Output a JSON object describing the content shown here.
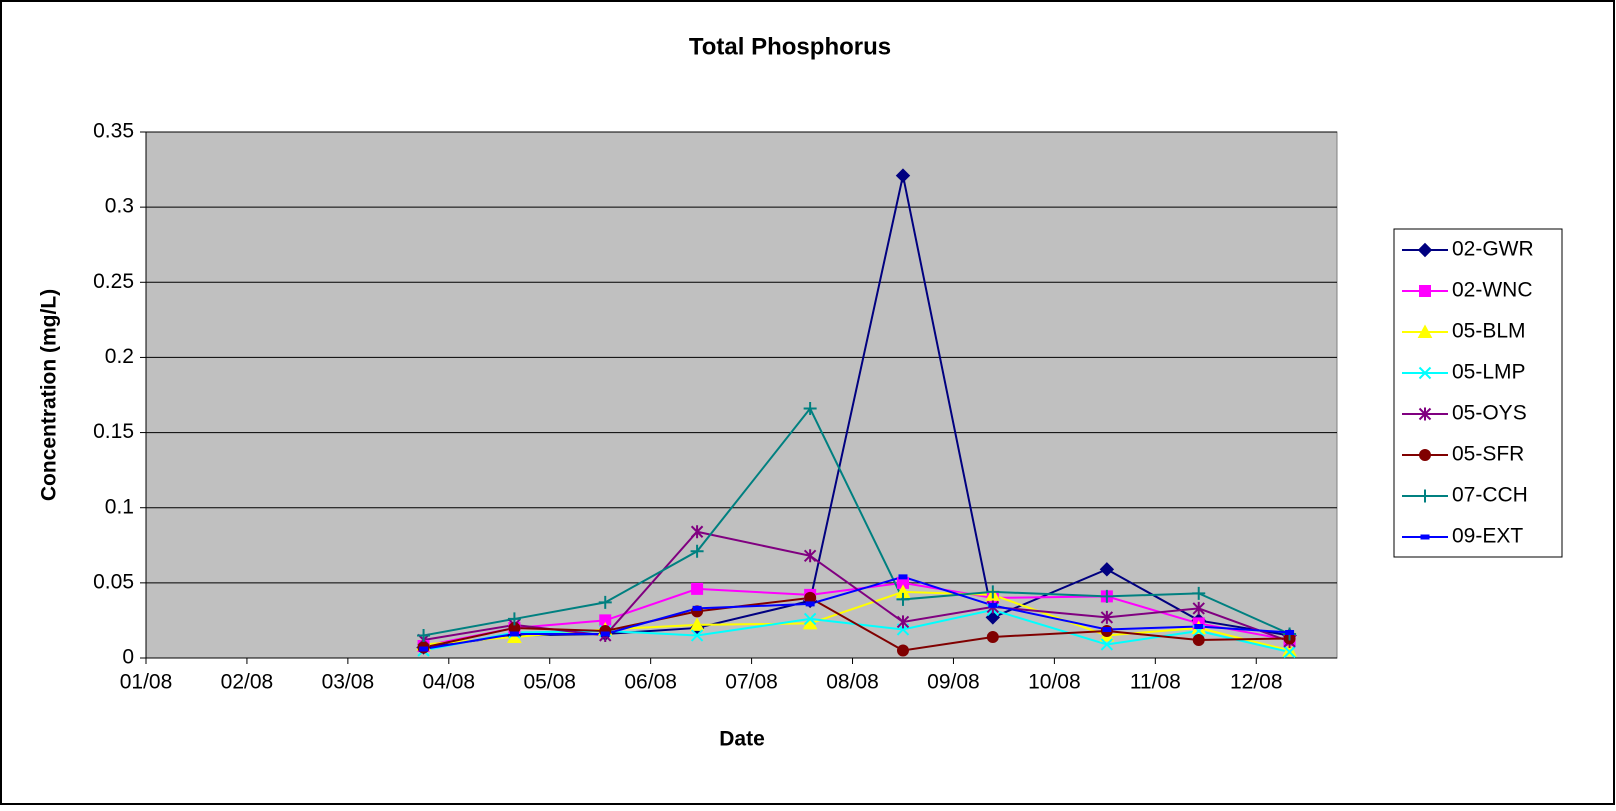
{
  "chart_data": {
    "type": "line",
    "title": "Total Phosphorus",
    "x_label": "Date",
    "y_label": "Concentration (mg/L)",
    "xlim": [
      0,
      11.8
    ],
    "xticks": [
      {
        "value": 0,
        "label": "01/08"
      },
      {
        "value": 1,
        "label": "02/08"
      },
      {
        "value": 2,
        "label": "03/08"
      },
      {
        "value": 3,
        "label": "04/08"
      },
      {
        "value": 4,
        "label": "05/08"
      },
      {
        "value": 5,
        "label": "06/08"
      },
      {
        "value": 6,
        "label": "07/08"
      },
      {
        "value": 7,
        "label": "08/08"
      },
      {
        "value": 8,
        "label": "09/08"
      },
      {
        "value": 9,
        "label": "10/08"
      },
      {
        "value": 10,
        "label": "11/08"
      },
      {
        "value": 11,
        "label": "12/08"
      }
    ],
    "ylim": [
      0,
      0.35
    ],
    "yticks": [
      0,
      0.05,
      0.1,
      0.15,
      0.2,
      0.25,
      0.3,
      0.35
    ],
    "grid": true,
    "legend": "right",
    "x": [
      2.75,
      3.65,
      4.55,
      5.46,
      6.58,
      7.5,
      8.39,
      9.52,
      10.43,
      11.33
    ],
    "series": [
      {
        "name": "02-GWR",
        "color": "#000080",
        "marker": "diamond",
        "values": [
          0.007,
          0.015,
          0.016,
          0.02,
          0.038,
          0.321,
          0.027,
          0.059,
          0.025,
          0.015
        ]
      },
      {
        "name": "02-WNC",
        "color": "#ff00ff",
        "marker": "square",
        "values": [
          0.008,
          0.02,
          0.025,
          0.046,
          0.042,
          0.05,
          0.04,
          0.041,
          0.023,
          0.012
        ]
      },
      {
        "name": "05-BLM",
        "color": "#ffff00",
        "marker": "triangle",
        "values": [
          0.009,
          0.014,
          0.019,
          0.022,
          0.023,
          0.044,
          0.042,
          0.015,
          0.02,
          0.005
        ]
      },
      {
        "name": "05-LMP",
        "color": "#00ffff",
        "marker": "x",
        "values": [
          0.005,
          0.017,
          0.018,
          0.015,
          0.026,
          0.019,
          0.032,
          0.009,
          0.018,
          0.004
        ]
      },
      {
        "name": "05-OYS",
        "color": "#800080",
        "marker": "star",
        "values": [
          0.012,
          0.022,
          0.015,
          0.084,
          0.068,
          0.024,
          0.034,
          0.027,
          0.033,
          0.011
        ]
      },
      {
        "name": "05-SFR",
        "color": "#800000",
        "marker": "circle",
        "values": [
          0.007,
          0.02,
          0.018,
          0.031,
          0.04,
          0.005,
          0.014,
          0.018,
          0.012,
          0.013
        ]
      },
      {
        "name": "07-CCH",
        "color": "#008080",
        "marker": "plus",
        "values": [
          0.015,
          0.026,
          0.037,
          0.071,
          0.166,
          0.039,
          0.044,
          0.041,
          0.043,
          0.016
        ]
      },
      {
        "name": "09-EXT",
        "color": "#0000ff",
        "marker": "dash",
        "values": [
          0.006,
          0.016,
          0.016,
          0.033,
          0.036,
          0.054,
          0.035,
          0.019,
          0.021,
          0.017
        ]
      }
    ]
  }
}
